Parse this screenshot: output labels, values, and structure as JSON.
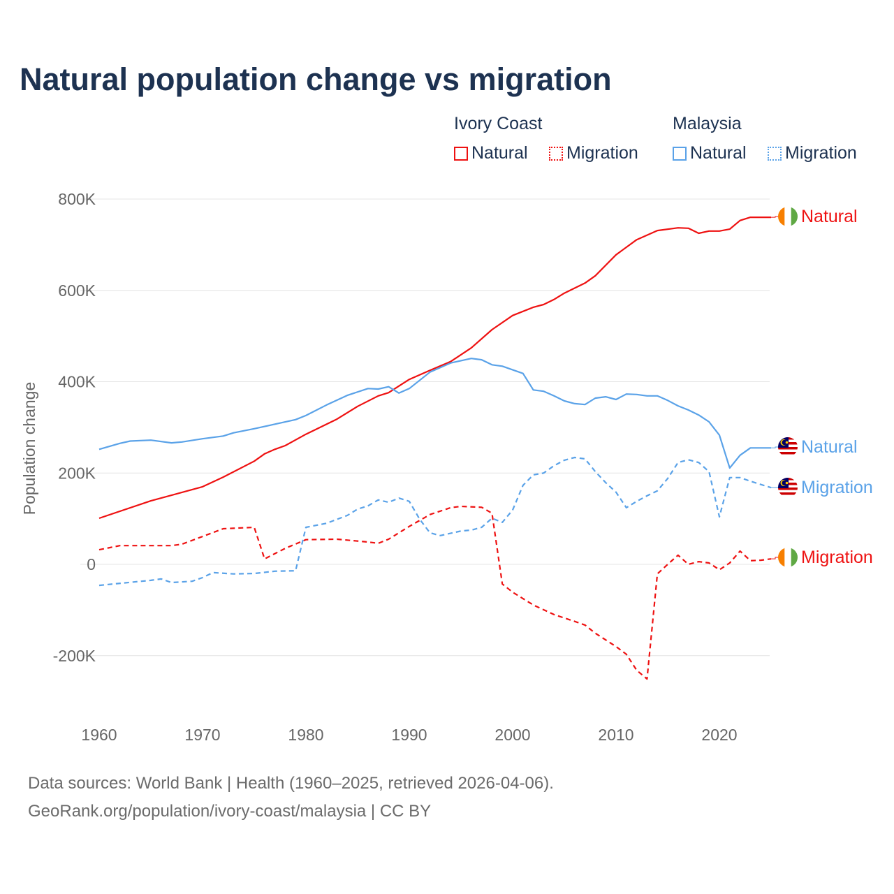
{
  "title": "Natural population change vs migration",
  "legend": {
    "groups": [
      {
        "name": "Ivory Coast",
        "color": "#ee1111",
        "items": [
          {
            "label": "Natural",
            "style": "solid"
          },
          {
            "label": "Migration",
            "style": "dotted"
          }
        ]
      },
      {
        "name": "Malaysia",
        "color": "#5aa2e8",
        "items": [
          {
            "label": "Natural",
            "style": "solid"
          },
          {
            "label": "Migration",
            "style": "dotted"
          }
        ]
      }
    ]
  },
  "footer": {
    "line1": "Data sources: World Bank | Health (1960–2025, retrieved 2026-04-06).",
    "line2": "GeoRank.org/population/ivory-coast/malaysia | CC BY"
  },
  "chart_data": {
    "type": "line",
    "title": "Natural population change vs migration",
    "xlabel": "",
    "ylabel": "Population change",
    "xlim": [
      1960,
      2025
    ],
    "ylim": [
      -300000,
      800000
    ],
    "xticks": [
      1960,
      1970,
      1980,
      1990,
      2000,
      2010,
      2020
    ],
    "xtick_labels": [
      "1960",
      "1970",
      "1980",
      "1990",
      "2000",
      "2010",
      "2020"
    ],
    "yticks": [
      -200000,
      0,
      200000,
      400000,
      600000,
      800000
    ],
    "ytick_labels": [
      "-200K",
      "0",
      "200K",
      "400K",
      "600K",
      "800K"
    ],
    "grid": true,
    "legend_position": "top-right",
    "series": [
      {
        "name": "Ivory Coast Natural",
        "end_label": "Natural",
        "color": "#ee1111",
        "dash": false,
        "flag": "ivory-coast",
        "x": [
          1960,
          1965,
          1970,
          1972,
          1975,
          1976,
          1977,
          1978,
          1980,
          1983,
          1985,
          1987,
          1988,
          1990,
          1992,
          1994,
          1996,
          1998,
          2000,
          2002,
          2003,
          2004,
          2005,
          2007,
          2008,
          2010,
          2012,
          2014,
          2016,
          2017,
          2018,
          2019,
          2020,
          2021,
          2022,
          2023,
          2025
        ],
        "y": [
          101000,
          139000,
          170000,
          191000,
          226000,
          242000,
          252000,
          260000,
          285000,
          318000,
          346000,
          369000,
          376000,
          405000,
          425000,
          444000,
          474000,
          514000,
          545000,
          563000,
          569000,
          580000,
          594000,
          616000,
          632000,
          678000,
          711000,
          731000,
          737000,
          736000,
          725000,
          730000,
          730000,
          734000,
          753000,
          760000,
          760000
        ]
      },
      {
        "name": "Ivory Coast Migration",
        "end_label": "Migration",
        "color": "#ee1111",
        "dash": true,
        "flag": "ivory-coast",
        "x": [
          1960,
          1962,
          1967,
          1968,
          1970,
          1972,
          1975,
          1976,
          1978,
          1980,
          1983,
          1986,
          1987,
          1988,
          1990,
          1992,
          1994,
          1995,
          1997,
          1998,
          1999,
          2000,
          2002,
          2004,
          2006,
          2007,
          2008,
          2010,
          2011,
          2012,
          2013,
          2014,
          2015,
          2016,
          2017,
          2018,
          2019,
          2020,
          2021,
          2022,
          2023,
          2024,
          2025
        ],
        "y": [
          32000,
          41000,
          41000,
          44000,
          61000,
          78000,
          81000,
          12000,
          35000,
          54000,
          55000,
          49000,
          46000,
          55000,
          83000,
          109000,
          124000,
          127000,
          125000,
          112000,
          -43000,
          -61000,
          -89000,
          -110000,
          -125000,
          -133000,
          -151000,
          -180000,
          -197000,
          -232000,
          -251000,
          -21000,
          0,
          20000,
          0,
          6000,
          3000,
          -12000,
          3000,
          29000,
          8000,
          9000,
          12000
        ]
      },
      {
        "name": "Malaysia Natural",
        "end_label": "Natural",
        "color": "#5aa2e8",
        "dash": false,
        "flag": "malaysia",
        "x": [
          1960,
          1962,
          1963,
          1965,
          1967,
          1968,
          1970,
          1972,
          1973,
          1975,
          1977,
          1979,
          1980,
          1982,
          1984,
          1986,
          1987,
          1988,
          1989,
          1990,
          1992,
          1994,
          1996,
          1997,
          1998,
          1999,
          2001,
          2002,
          2003,
          2004,
          2005,
          2006,
          2007,
          2008,
          2009,
          2010,
          2011,
          2012,
          2013,
          2014,
          2015,
          2016,
          2017,
          2018,
          2019,
          2020,
          2021,
          2022,
          2023,
          2025
        ],
        "y": [
          252000,
          265000,
          270000,
          272000,
          266000,
          268000,
          275000,
          281000,
          288000,
          297000,
          307000,
          317000,
          326000,
          349000,
          370000,
          385000,
          384000,
          389000,
          375000,
          385000,
          421000,
          441000,
          451000,
          448000,
          437000,
          434000,
          418000,
          382000,
          379000,
          369000,
          358000,
          352000,
          350000,
          364000,
          367000,
          361000,
          373000,
          372000,
          369000,
          369000,
          359000,
          347000,
          338000,
          327000,
          312000,
          283000,
          211000,
          239000,
          255000,
          255000
        ]
      },
      {
        "name": "Malaysia Migration",
        "end_label": "Migration",
        "color": "#5aa2e8",
        "dash": true,
        "flag": "malaysia",
        "x": [
          1960,
          1965,
          1966,
          1967,
          1969,
          1970,
          1971,
          1973,
          1975,
          1977,
          1979,
          1980,
          1982,
          1984,
          1985,
          1986,
          1987,
          1988,
          1989,
          1990,
          1991,
          1992,
          1993,
          1995,
          1996,
          1997,
          1998,
          1999,
          2000,
          2001,
          2002,
          2003,
          2004,
          2005,
          2006,
          2007,
          2008,
          2009,
          2010,
          2011,
          2012,
          2013,
          2014,
          2015,
          2016,
          2017,
          2018,
          2019,
          2020,
          2021,
          2022,
          2023,
          2025
        ],
        "y": [
          -46000,
          -35000,
          -32000,
          -40000,
          -37000,
          -29000,
          -18000,
          -21000,
          -20000,
          -15000,
          -14000,
          81000,
          90000,
          107000,
          121000,
          128000,
          141000,
          136000,
          145000,
          138000,
          99000,
          69000,
          63000,
          73000,
          75000,
          81000,
          101000,
          92000,
          119000,
          173000,
          196000,
          200000,
          216000,
          228000,
          234000,
          231000,
          203000,
          179000,
          158000,
          124000,
          138000,
          150000,
          161000,
          188000,
          223000,
          229000,
          223000,
          203000,
          104000,
          190000,
          190000,
          182000,
          168000
        ]
      }
    ]
  }
}
